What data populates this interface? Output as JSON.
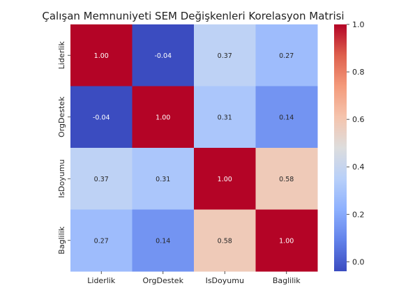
{
  "chart_data": {
    "type": "heatmap",
    "title": "Çalışan Memnuniyeti SEM Değişkenleri Korelasyon Matrisi",
    "xlabel": "",
    "ylabel": "",
    "x_categories": [
      "Liderlik",
      "OrgDestek",
      "IsDoyumu",
      "Baglilik"
    ],
    "y_categories": [
      "Liderlik",
      "OrgDestek",
      "IsDoyumu",
      "Baglilik"
    ],
    "values": [
      [
        1.0,
        -0.04,
        0.37,
        0.27
      ],
      [
        -0.04,
        1.0,
        0.31,
        0.14
      ],
      [
        0.37,
        0.31,
        1.0,
        0.58
      ],
      [
        0.27,
        0.14,
        0.58,
        1.0
      ]
    ],
    "cell_labels": [
      [
        "1.00",
        "-0.04",
        "0.37",
        "0.27"
      ],
      [
        "-0.04",
        "1.00",
        "0.31",
        "0.14"
      ],
      [
        "0.37",
        "0.31",
        "1.00",
        "0.58"
      ],
      [
        "0.27",
        "0.14",
        "0.58",
        "1.00"
      ]
    ],
    "colormap": "coolwarm",
    "vmin": -0.04,
    "vmax": 1.0,
    "colorbar": {
      "ticks": [
        0.0,
        0.2,
        0.4,
        0.6,
        0.8,
        1.0
      ],
      "tick_labels": [
        "0.0",
        "0.2",
        "0.4",
        "0.6",
        "0.8",
        "1.0"
      ]
    },
    "grid": false,
    "legend": "colorbar-right"
  }
}
